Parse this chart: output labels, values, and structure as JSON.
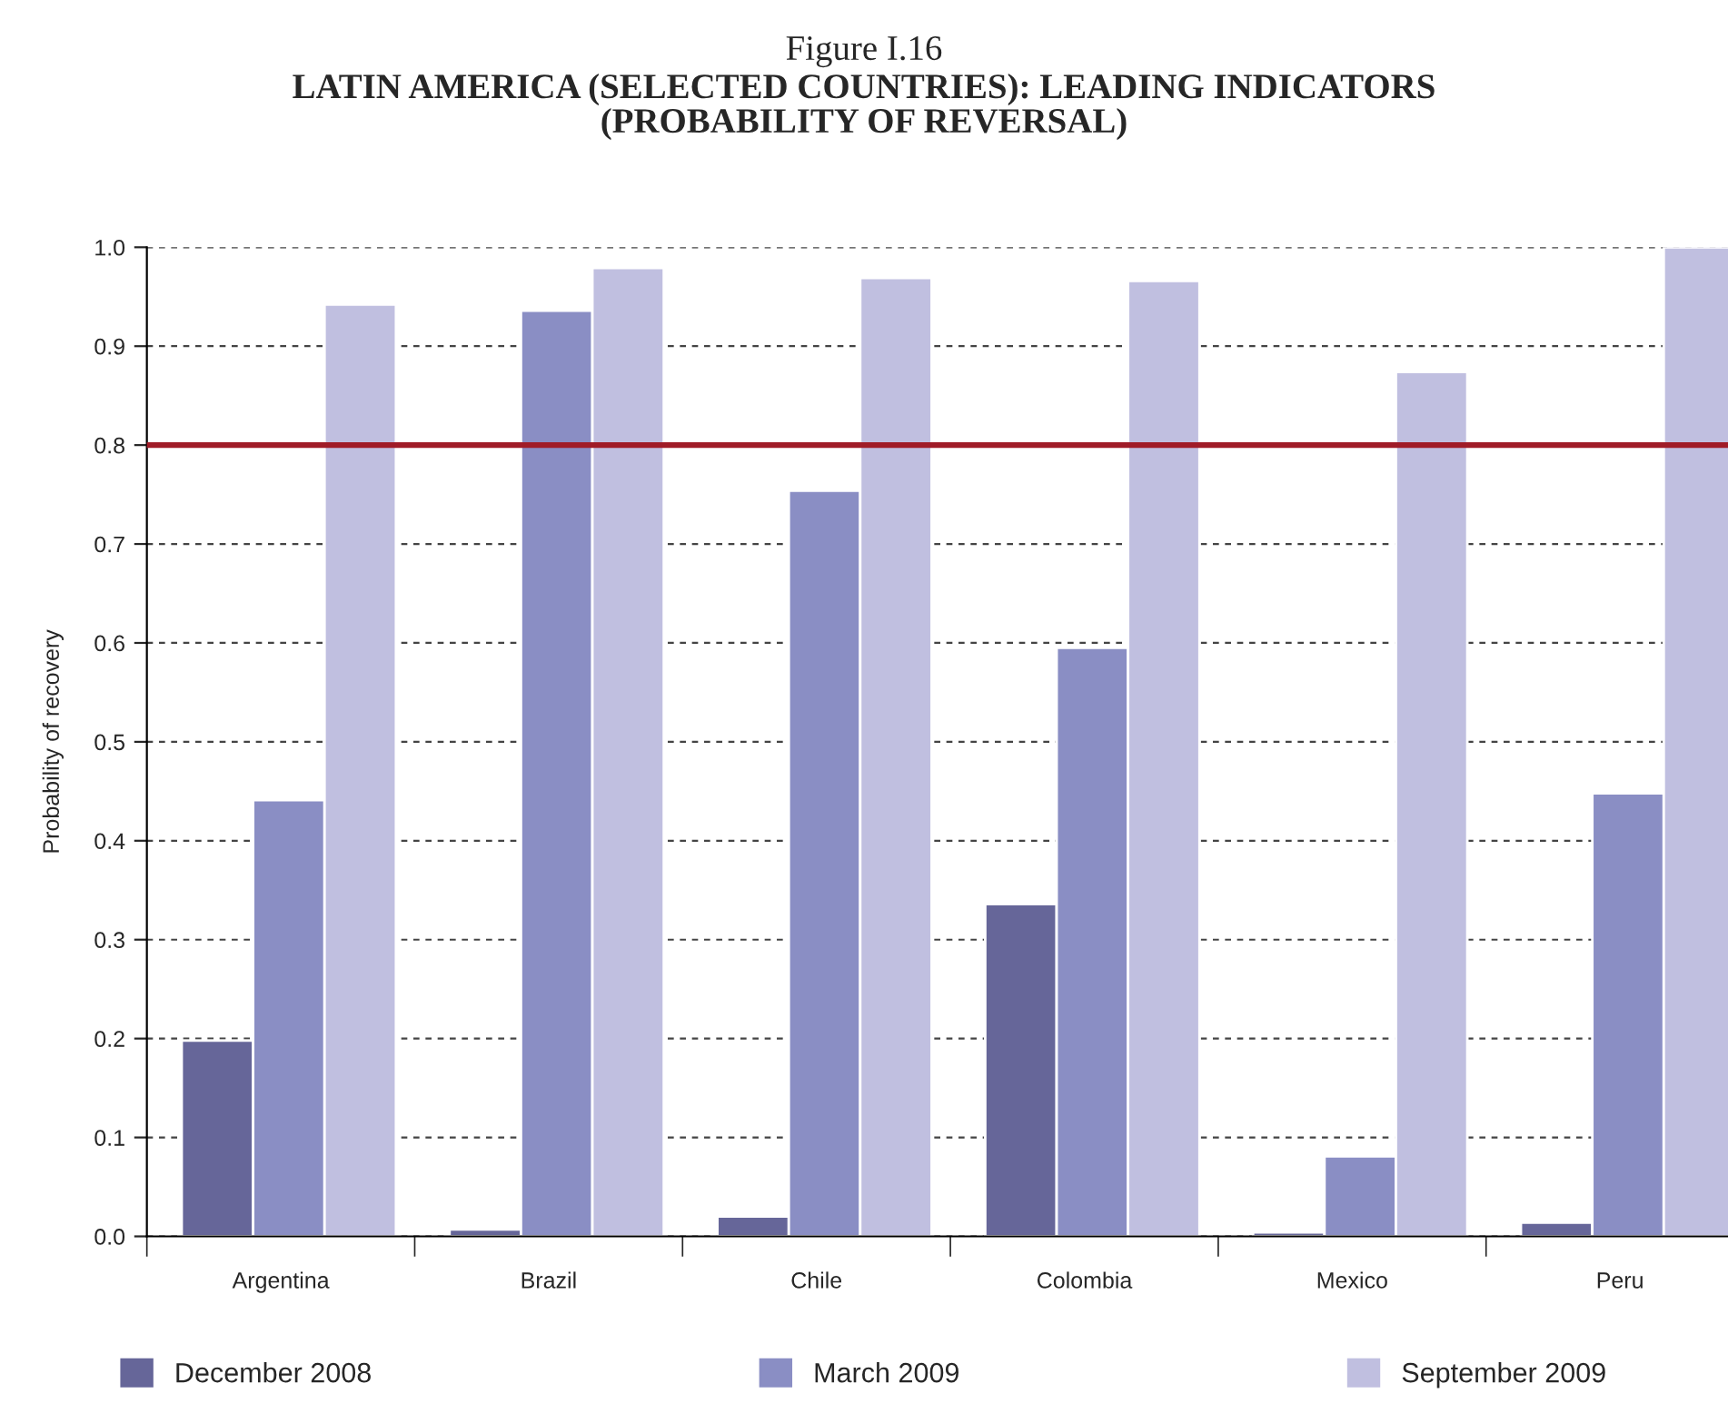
{
  "chart_data": {
    "type": "bar",
    "title": "Figure I.16",
    "subtitle": "LATIN AMERICA (SELECTED COUNTRIES): LEADING INDICATORS\n(PROBABILITY OF REVERSAL)",
    "ylabel": "Probability of recovery",
    "categories": [
      "Argentina",
      "Brazil",
      "Chile",
      "Colombia",
      "Mexico",
      "Peru"
    ],
    "series": [
      {
        "name": "December 2008",
        "color": "#666699",
        "values": [
          0.198,
          0.007,
          0.02,
          0.336,
          0.004,
          0.014
        ]
      },
      {
        "name": "March 2009",
        "color": "#8a8ec4",
        "values": [
          0.441,
          0.936,
          0.754,
          0.595,
          0.081,
          0.448
        ]
      },
      {
        "name": "September 2009",
        "color": "#c0bfe0",
        "values": [
          0.942,
          0.979,
          0.969,
          0.966,
          0.874,
          1.0
        ]
      }
    ],
    "ylim": [
      0,
      1
    ],
    "yticks": [
      {
        "value": 0,
        "label": "0.0"
      },
      {
        "value": 0.1,
        "label": "0.1"
      },
      {
        "value": 0.2,
        "label": "0.2"
      },
      {
        "value": 0.3,
        "label": "0.3"
      },
      {
        "value": 0.4,
        "label": "0.4"
      },
      {
        "value": 0.5,
        "label": "0.5"
      },
      {
        "value": 0.6,
        "label": "0.6"
      },
      {
        "value": 0.7,
        "label": "0.7"
      },
      {
        "value": 0.8,
        "label": "0.8"
      },
      {
        "value": 0.9,
        "label": "0.9"
      },
      {
        "value": 1,
        "label": "1.0"
      }
    ],
    "ref_lines": [
      {
        "axis": "y",
        "value": 0.8,
        "color": "#a01c28"
      }
    ],
    "grid": "y",
    "legend": "bottom"
  }
}
